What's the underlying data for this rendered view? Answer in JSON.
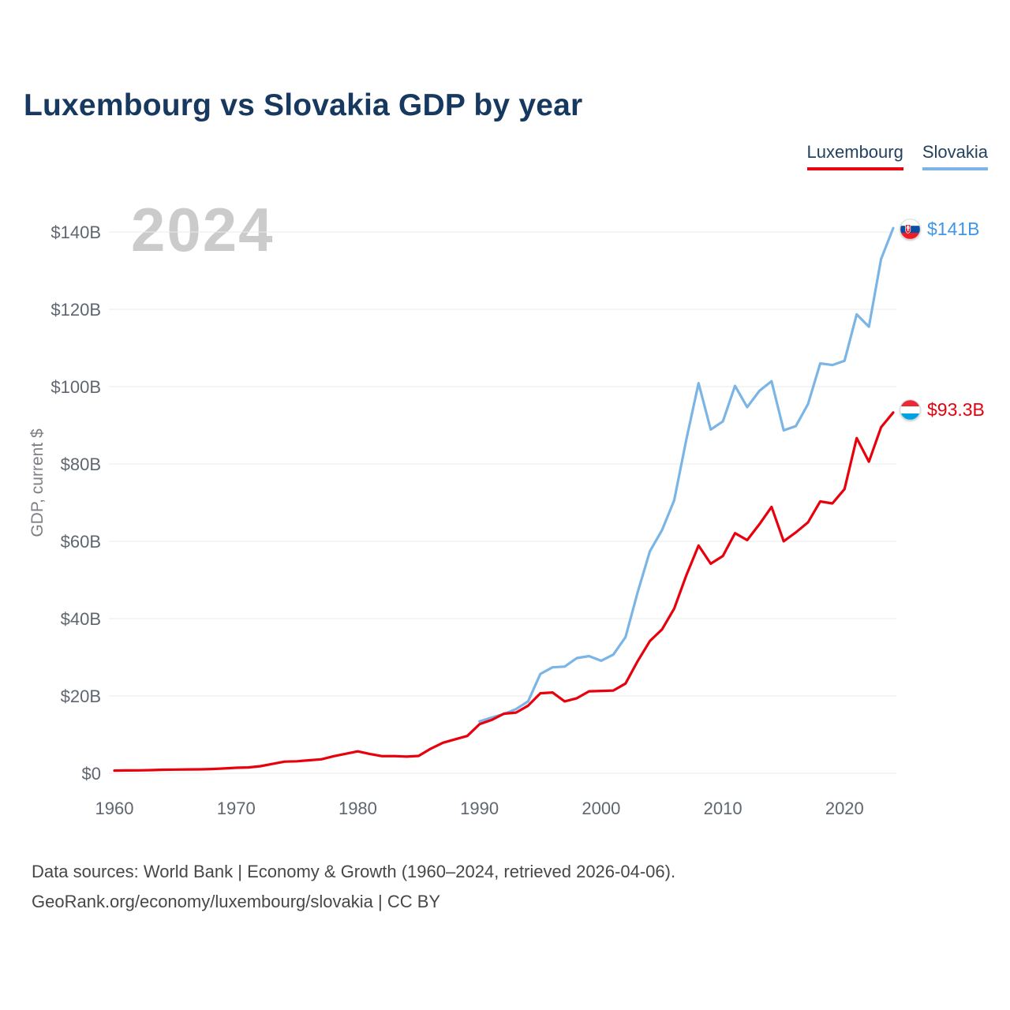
{
  "page": {
    "title": "Luxembourg vs Slovakia GDP by year",
    "watermark": "2024"
  },
  "legend": {
    "items": [
      {
        "label": "Luxembourg",
        "color": "#e8000d"
      },
      {
        "label": "Slovakia",
        "color": "#7ab5e5"
      }
    ]
  },
  "end_labels": {
    "slovakia": {
      "value": "$141B",
      "color": "#3f96e8",
      "flag": "slovakia-flag"
    },
    "luxembourg": {
      "value": "$93.3B",
      "color": "#e8000d",
      "flag": "luxembourg-flag"
    }
  },
  "footer": {
    "line1": "Data sources: World Bank | Economy & Growth (1960–2024, retrieved 2026-04-06).",
    "line2": "GeoRank.org/economy/luxembourg/slovakia | CC BY"
  },
  "chart_data": {
    "type": "line",
    "title": "Luxembourg vs Slovakia GDP by year",
    "xlabel": "",
    "ylabel": "GDP, current $",
    "unit": "billions of current US dollars",
    "grid": true,
    "legend_position": "top-right",
    "xlim": [
      1960,
      2024
    ],
    "ylim": [
      0,
      140
    ],
    "x_ticks": [
      1960,
      1970,
      1980,
      1990,
      2000,
      2010,
      2020
    ],
    "y_ticks": [
      0,
      20,
      40,
      60,
      80,
      100,
      120,
      140
    ],
    "y_tick_labels": [
      "$0",
      "$20B",
      "$40B",
      "$60B",
      "$80B",
      "$100B",
      "$120B",
      "$140B"
    ],
    "series": [
      {
        "name": "Luxembourg",
        "color": "#e8000d",
        "end_label": "$93.3B",
        "years": [
          1960,
          1961,
          1962,
          1963,
          1964,
          1965,
          1966,
          1967,
          1968,
          1969,
          1970,
          1971,
          1972,
          1973,
          1974,
          1975,
          1976,
          1977,
          1978,
          1979,
          1980,
          1981,
          1982,
          1983,
          1984,
          1985,
          1986,
          1987,
          1988,
          1989,
          1990,
          1991,
          1992,
          1993,
          1994,
          1995,
          1996,
          1997,
          1998,
          1999,
          2000,
          2001,
          2002,
          2003,
          2004,
          2005,
          2006,
          2007,
          2008,
          2009,
          2010,
          2011,
          2012,
          2013,
          2014,
          2015,
          2016,
          2017,
          2018,
          2019,
          2020,
          2021,
          2022,
          2023,
          2024
        ],
        "values": [
          0.7,
          0.74,
          0.76,
          0.82,
          0.92,
          0.96,
          1.0,
          1.03,
          1.11,
          1.24,
          1.42,
          1.51,
          1.84,
          2.42,
          3.02,
          3.1,
          3.36,
          3.62,
          4.4,
          5.04,
          5.67,
          4.98,
          4.42,
          4.44,
          4.3,
          4.5,
          6.37,
          7.9,
          8.79,
          9.66,
          12.7,
          13.8,
          15.4,
          15.7,
          17.5,
          20.7,
          20.9,
          18.6,
          19.4,
          21.2,
          21.3,
          21.4,
          23.2,
          29.0,
          34.2,
          37.2,
          42.6,
          51.2,
          58.9,
          54.2,
          56.2,
          62.1,
          60.3,
          64.4,
          68.9,
          60.0,
          62.3,
          64.9,
          70.3,
          69.8,
          73.5,
          86.7,
          80.6,
          89.5,
          93.3
        ]
      },
      {
        "name": "Slovakia",
        "color": "#7ab5e5",
        "end_label": "$141B",
        "years": [
          1990,
          1991,
          1992,
          1993,
          1994,
          1995,
          1996,
          1997,
          1998,
          1999,
          2000,
          2001,
          2002,
          2003,
          2004,
          2005,
          2006,
          2007,
          2008,
          2009,
          2010,
          2011,
          2012,
          2013,
          2014,
          2015,
          2016,
          2017,
          2018,
          2019,
          2020,
          2021,
          2022,
          2023,
          2024
        ],
        "values": [
          13.4,
          14.4,
          15.3,
          16.6,
          18.6,
          25.7,
          27.4,
          27.6,
          29.8,
          30.3,
          29.1,
          30.7,
          35.2,
          46.8,
          57.4,
          62.9,
          70.6,
          86.3,
          100.9,
          88.9,
          91.0,
          100.2,
          94.7,
          98.9,
          101.4,
          88.7,
          89.8,
          95.5,
          106.0,
          105.6,
          106.7,
          118.7,
          115.5,
          133.0,
          141.0
        ]
      }
    ]
  }
}
